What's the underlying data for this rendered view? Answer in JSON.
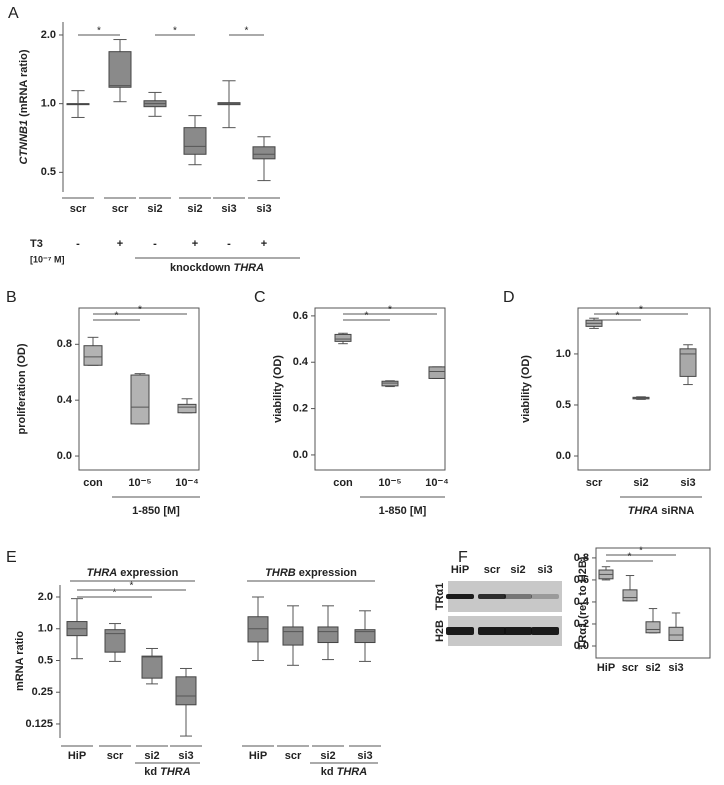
{
  "chart_data": [
    {
      "type": "box",
      "panel": "A",
      "log": true,
      "color": "#8a8a8a",
      "ylabel": [
        {
          "text": "CTNNB1",
          "italic": true
        },
        {
          "text": "(mRNA ratio)"
        }
      ],
      "categories": [
        "scr",
        "scr",
        "si2",
        "si2",
        "si3",
        "si3"
      ],
      "values": [
        {
          "min": 0.87,
          "q1": 1.0,
          "median": 1.0,
          "q3": 1.0,
          "max": 1.14
        },
        {
          "min": 1.02,
          "q1": 1.18,
          "median": 1.2,
          "q3": 1.69,
          "max": 1.91
        },
        {
          "min": 0.88,
          "q1": 0.97,
          "median": 1.0,
          "q3": 1.03,
          "max": 1.12
        },
        {
          "min": 0.54,
          "q1": 0.6,
          "median": 0.65,
          "q3": 0.785,
          "max": 0.886
        },
        {
          "min": 0.785,
          "q1": 0.99,
          "median": 1.0,
          "q3": 1.01,
          "max": 1.26
        },
        {
          "min": 0.46,
          "q1": 0.573,
          "median": 0.6,
          "q3": 0.647,
          "max": 0.716
        }
      ],
      "ylim": [
        0.41,
        2.28
      ],
      "yticks": [
        0.5,
        {
          "value": 1,
          "label": "1.0"
        },
        {
          "value": 2,
          "label": "2.0"
        }
      ],
      "significance": [
        {
          "pair": [
            0,
            1
          ],
          "label": "*"
        },
        {
          "pair": [
            2,
            3
          ],
          "label": "*"
        },
        {
          "pair": [
            4,
            5
          ],
          "label": "*"
        }
      ],
      "treatment": {
        "label": "T3",
        "unit": "[10⁻⁷ M]",
        "values": [
          "-",
          "+",
          "-",
          "+",
          "-",
          "+"
        ]
      },
      "group_label": [
        {
          "text": "knockdown"
        },
        {
          "text": "THRA",
          "italic": true
        }
      ]
    },
    {
      "type": "box",
      "panel": "B",
      "log": false,
      "color": "#b3b3b3",
      "ylabel": [
        {
          "text": "proliferation (OD)"
        }
      ],
      "categories": [
        "con",
        "10⁻⁵",
        "10⁻⁴"
      ],
      "values": [
        {
          "min": 0.65,
          "q1": 0.65,
          "median": 0.71,
          "q3": 0.79,
          "max": 0.85
        },
        {
          "min": 0.23,
          "q1": 0.23,
          "median": 0.35,
          "q3": 0.58,
          "max": 0.59
        },
        {
          "min": 0.31,
          "q1": 0.31,
          "median": 0.35,
          "q3": 0.37,
          "max": 0.41
        }
      ],
      "ylim": [
        -0.1,
        1.06
      ],
      "yticks": [
        {
          "value": 0,
          "label": "0.0"
        },
        0.4,
        0.8
      ],
      "significance": [
        {
          "pair": [
            0,
            1
          ],
          "label": "*"
        },
        {
          "pair": [
            0,
            2
          ],
          "label": "*"
        }
      ],
      "xlabel": [
        {
          "text": "1-850 [M]"
        }
      ]
    },
    {
      "type": "box",
      "panel": "C",
      "log": false,
      "color": "#a9a9a9",
      "ylabel": [
        {
          "text": "viability (OD)"
        }
      ],
      "categories": [
        "con",
        "10⁻⁵",
        "10⁻⁴"
      ],
      "values": [
        {
          "min": 0.48,
          "q1": 0.49,
          "median": 0.5,
          "q3": 0.52,
          "max": 0.525
        },
        {
          "min": 0.295,
          "q1": 0.298,
          "median": 0.31,
          "q3": 0.318,
          "max": 0.32
        },
        {
          "min": 0.33,
          "q1": 0.33,
          "median": 0.36,
          "q3": 0.38,
          "max": 0.38
        }
      ],
      "ylim": [
        -0.065,
        0.634
      ],
      "yticks": [
        {
          "value": 0,
          "label": "0.0"
        },
        0.2,
        0.4,
        0.6
      ],
      "significance": [
        {
          "pair": [
            0,
            1
          ],
          "label": "*"
        },
        {
          "pair": [
            0,
            2
          ],
          "label": "*"
        }
      ],
      "xlabel": [
        {
          "text": "1-850 [M]"
        }
      ]
    },
    {
      "type": "box",
      "panel": "D",
      "log": false,
      "color": "#a9a9a9",
      "ylabel": [
        {
          "text": "viability (OD)"
        }
      ],
      "categories": [
        "scr",
        "si2",
        "si3"
      ],
      "values": [
        {
          "min": 1.25,
          "q1": 1.27,
          "median": 1.3,
          "q3": 1.33,
          "max": 1.35
        },
        {
          "min": 0.555,
          "q1": 0.56,
          "median": 0.57,
          "q3": 0.575,
          "max": 0.58
        },
        {
          "min": 0.7,
          "q1": 0.78,
          "median": 1.0,
          "q3": 1.05,
          "max": 1.09
        }
      ],
      "ylim": [
        -0.137,
        1.45
      ],
      "yticks": [
        {
          "value": 0,
          "label": "0.0"
        },
        0.5,
        {
          "value": 1,
          "label": "1.0"
        }
      ],
      "significance": [
        {
          "pair": [
            0,
            1
          ],
          "label": "*"
        },
        {
          "pair": [
            0,
            2
          ],
          "label": "*"
        }
      ],
      "xlabel": [
        {
          "text": "THRA",
          "italic": true
        },
        {
          "text": "siRNA"
        }
      ]
    },
    {
      "type": "box",
      "panel": "E",
      "log": true,
      "color": "#8a8a8a",
      "ylabel": [
        {
          "text": "mRNA ratio"
        }
      ],
      "categories": [
        "HiP",
        "scr",
        "si2",
        "si3",
        null,
        "HiP",
        "scr",
        "si2",
        "si3"
      ],
      "values": [
        {
          "min": 0.52,
          "q1": 0.86,
          "median": 1.0,
          "q3": 1.17,
          "max": 1.93
        },
        {
          "min": 0.49,
          "q1": 0.6,
          "median": 0.9,
          "q3": 0.98,
          "max": 1.12
        },
        {
          "min": 0.3,
          "q1": 0.34,
          "median": 0.54,
          "q3": 0.55,
          "max": 0.65
        },
        {
          "min": 0.096,
          "q1": 0.19,
          "median": 0.23,
          "q3": 0.35,
          "max": 0.42
        },
        null,
        {
          "min": 0.5,
          "q1": 0.75,
          "median": 1.0,
          "q3": 1.3,
          "max": 2.0
        },
        {
          "min": 0.45,
          "q1": 0.7,
          "median": 0.94,
          "q3": 1.04,
          "max": 1.65
        },
        {
          "min": 0.51,
          "q1": 0.74,
          "median": 0.94,
          "q3": 1.04,
          "max": 1.65
        },
        {
          "min": 0.49,
          "q1": 0.74,
          "median": 0.94,
          "q3": 0.98,
          "max": 1.48
        }
      ],
      "ylim": [
        0.092,
        2.6
      ],
      "yticks": [
        0.125,
        0.25,
        0.5,
        {
          "value": 1,
          "label": "1.0"
        },
        {
          "value": 2,
          "label": "2.0"
        }
      ],
      "significance": [
        {
          "pair": [
            0,
            2
          ],
          "label": "*"
        },
        {
          "pair": [
            0,
            3
          ],
          "label": "*"
        }
      ],
      "groups": [
        [
          {
            "text": "THRA",
            "italic": true
          },
          {
            "text": "expression"
          }
        ],
        [
          {
            "text": "THRB",
            "italic": true
          },
          {
            "text": "expression"
          }
        ]
      ],
      "subgroups": [
        [
          {
            "text": "kd"
          },
          {
            "text": "THRA",
            "italic": true
          }
        ],
        [
          {
            "text": "kd"
          },
          {
            "text": "THRA",
            "italic": true
          }
        ]
      ]
    },
    {
      "type": "box",
      "panel": "F",
      "log": false,
      "color": "#b3b3b3",
      "ylabel": [
        {
          "text": "TRα1"
        },
        {
          "text": "(rel. to H2B)"
        }
      ],
      "categories": [
        "HiP",
        "scr",
        "si2",
        "si3"
      ],
      "values": [
        {
          "min": 0.6,
          "q1": 0.61,
          "median": 0.65,
          "q3": 0.69,
          "max": 0.72
        },
        {
          "min": 0.41,
          "q1": 0.41,
          "median": 0.44,
          "q3": 0.51,
          "max": 0.64
        },
        {
          "min": 0.12,
          "q1": 0.12,
          "median": 0.15,
          "q3": 0.22,
          "max": 0.34
        },
        {
          "min": 0.05,
          "q1": 0.05,
          "median": 0.1,
          "q3": 0.17,
          "max": 0.3
        }
      ],
      "ylim": [
        -0.109,
        0.89
      ],
      "yticks": [
        {
          "value": 0,
          "label": "0.0"
        },
        0.2,
        0.4,
        0.6,
        0.8
      ],
      "significance": [
        {
          "pair": [
            0,
            2
          ],
          "label": "*"
        },
        {
          "pair": [
            0,
            3
          ],
          "label": "*"
        }
      ],
      "blot": {
        "lanes": [
          "HiP",
          "scr",
          "si2",
          "si3"
        ],
        "rows": [
          "TRα1",
          "H2B"
        ]
      }
    }
  ]
}
